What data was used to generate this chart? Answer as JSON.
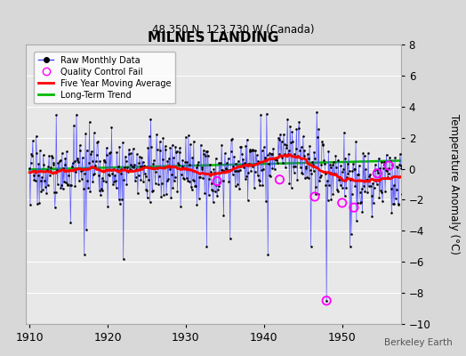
{
  "title": "MILNES LANDING",
  "subtitle": "48.350 N, 123.730 W (Canada)",
  "ylabel": "Temperature Anomaly (°C)",
  "attribution": "Berkeley Earth",
  "year_start": 1910,
  "year_end": 1958,
  "ylim": [
    -10,
    8
  ],
  "yticks": [
    -10,
    -8,
    -6,
    -4,
    -2,
    0,
    2,
    4,
    6,
    8
  ],
  "fig_background": "#d8d8d8",
  "plot_bg_color": "#e8e8e8",
  "raw_line_color": "#4444ff",
  "raw_dot_color": "#000000",
  "moving_avg_color": "#ff0000",
  "trend_color": "#00bb00",
  "qc_fail_color": "#ff00ff",
  "seed": 17,
  "moving_avg_window": 60,
  "xtick_years": [
    1910,
    1920,
    1930,
    1940,
    1950
  ]
}
